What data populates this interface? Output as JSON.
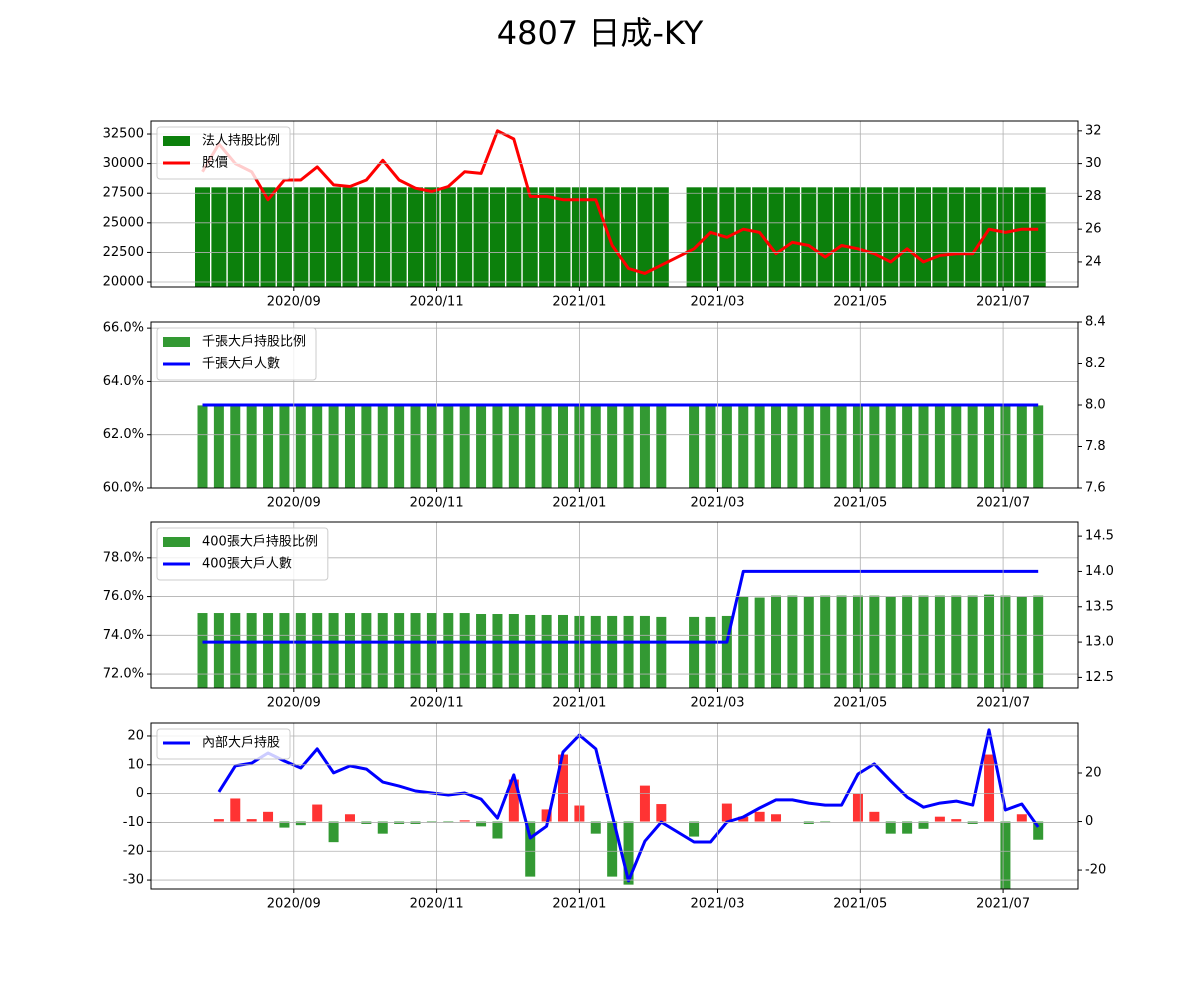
{
  "title": "4807 日成-KY",
  "chart_data": [
    {
      "type": "bar_line",
      "x": [
        "2020-07-24",
        "2020-07-31",
        "2020-08-07",
        "2020-08-14",
        "2020-08-21",
        "2020-08-28",
        "2020-09-04",
        "2020-09-11",
        "2020-09-18",
        "2020-09-25",
        "2020-10-02",
        "2020-10-09",
        "2020-10-16",
        "2020-10-23",
        "2020-10-30",
        "2020-11-06",
        "2020-11-13",
        "2020-11-20",
        "2020-11-27",
        "2020-12-04",
        "2020-12-11",
        "2020-12-18",
        "2020-12-25",
        "2021-01-01",
        "2021-01-08",
        "2021-01-15",
        "2021-01-22",
        "2021-01-29",
        "2021-02-05",
        "2021-02-19",
        "2021-02-26",
        "2021-03-05",
        "2021-03-12",
        "2021-03-19",
        "2021-03-26",
        "2021-04-02",
        "2021-04-09",
        "2021-04-16",
        "2021-04-23",
        "2021-04-30",
        "2021-05-07",
        "2021-05-14",
        "2021-05-21",
        "2021-05-28",
        "2021-06-04",
        "2021-06-11",
        "2021-06-18",
        "2021-06-25",
        "2021-07-02",
        "2021-07-09",
        "2021-07-16"
      ],
      "xlim": [
        "2020-07-02",
        "2021-08-02"
      ],
      "xticks": [
        {
          "value": "2020-09-01",
          "label": "2020/09"
        },
        {
          "value": "2020-11-01",
          "label": "2020/11"
        },
        {
          "value": "2021-01-01",
          "label": "2021/01"
        },
        {
          "value": "2021-03-01",
          "label": "2021/03"
        },
        {
          "value": "2021-05-01",
          "label": "2021/05"
        },
        {
          "value": "2021-07-01",
          "label": "2021/07"
        }
      ],
      "ylim": [
        19580,
        33600
      ],
      "yticks": [
        20000,
        22500,
        25000,
        27500,
        30000,
        32500
      ],
      "y2lim": [
        22.47,
        32.6
      ],
      "y2ticks": [
        24,
        26,
        28,
        30,
        32
      ],
      "grid": true,
      "legend": "upper left",
      "series": [
        {
          "name": "法人持股比例",
          "type": "bar",
          "color": "#0c800c",
          "values": [
            28000,
            28000,
            28000,
            28000,
            28000,
            28000,
            28000,
            28000,
            28000,
            28000,
            28000,
            28000,
            28000,
            28000,
            28000,
            28000,
            28000,
            28000,
            28000,
            28000,
            28000,
            28000,
            28000,
            28000,
            28000,
            28000,
            28000,
            28000,
            28000,
            28000,
            28000,
            28000,
            28000,
            28000,
            28000,
            28000,
            28000,
            28000,
            28000,
            28000,
            28000,
            28000,
            28000,
            28000,
            28000,
            28000,
            28000,
            28000,
            28000,
            28000,
            28000
          ]
        },
        {
          "name": "股價",
          "type": "line",
          "axis": "y2",
          "color": "#ff0000",
          "values": [
            29.5,
            31.2,
            30.0,
            29.5,
            27.8,
            29.0,
            29.0,
            29.8,
            28.7,
            28.6,
            29.0,
            30.2,
            29.0,
            28.5,
            28.3,
            28.6,
            29.5,
            29.4,
            32.0,
            31.5,
            28.0,
            28.0,
            27.8,
            27.8,
            27.8,
            25.0,
            23.6,
            23.3,
            23.8,
            24.8,
            25.8,
            25.5,
            26.0,
            25.8,
            24.5,
            25.2,
            25.0,
            24.3,
            25.0,
            24.8,
            24.5,
            24.0,
            24.8,
            24.0,
            24.4,
            24.5,
            24.5,
            26.0,
            25.8,
            26.0,
            26.0
          ]
        }
      ]
    },
    {
      "type": "bar_line",
      "x": [
        "2020-07-24",
        "2020-07-31",
        "2020-08-07",
        "2020-08-14",
        "2020-08-21",
        "2020-08-28",
        "2020-09-04",
        "2020-09-11",
        "2020-09-18",
        "2020-09-25",
        "2020-10-02",
        "2020-10-09",
        "2020-10-16",
        "2020-10-23",
        "2020-10-30",
        "2020-11-06",
        "2020-11-13",
        "2020-11-20",
        "2020-11-27",
        "2020-12-04",
        "2020-12-11",
        "2020-12-18",
        "2020-12-25",
        "2021-01-01",
        "2021-01-08",
        "2021-01-15",
        "2021-01-22",
        "2021-01-29",
        "2021-02-05",
        "2021-02-19",
        "2021-02-26",
        "2021-03-05",
        "2021-03-12",
        "2021-03-19",
        "2021-03-26",
        "2021-04-02",
        "2021-04-09",
        "2021-04-16",
        "2021-04-23",
        "2021-04-30",
        "2021-05-07",
        "2021-05-14",
        "2021-05-21",
        "2021-05-28",
        "2021-06-04",
        "2021-06-11",
        "2021-06-18",
        "2021-06-25",
        "2021-07-02",
        "2021-07-09",
        "2021-07-16"
      ],
      "xlim": [
        "2020-07-02",
        "2021-08-02"
      ],
      "xticks": [
        {
          "value": "2020-09-01",
          "label": "2020/09"
        },
        {
          "value": "2020-11-01",
          "label": "2020/11"
        },
        {
          "value": "2021-01-01",
          "label": "2021/01"
        },
        {
          "value": "2021-03-01",
          "label": "2021/03"
        },
        {
          "value": "2021-05-01",
          "label": "2021/05"
        },
        {
          "value": "2021-07-01",
          "label": "2021/07"
        }
      ],
      "ylim": [
        60,
        66.23
      ],
      "yticks": [
        {
          "value": 60,
          "label": "60.0%"
        },
        {
          "value": 62,
          "label": "62.0%"
        },
        {
          "value": 64,
          "label": "64.0%"
        },
        {
          "value": 66,
          "label": "66.0%"
        }
      ],
      "y2lim": [
        7.6,
        8.4
      ],
      "y2ticks": [
        7.6,
        7.8,
        {
          "value": 8,
          "label": "8.0"
        },
        8.2,
        8.4
      ],
      "grid": true,
      "legend": "upper left",
      "series": [
        {
          "name": "千張大戶持股比例",
          "type": "bar",
          "color": "#339933",
          "values": [
            63.1,
            63.1,
            63.1,
            63.1,
            63.1,
            63.1,
            63.1,
            63.1,
            63.1,
            63.1,
            63.1,
            63.1,
            63.1,
            63.1,
            63.1,
            63.1,
            63.1,
            63.1,
            63.1,
            63.1,
            63.1,
            63.1,
            63.1,
            63.1,
            63.1,
            63.1,
            63.1,
            63.1,
            63.1,
            63.1,
            63.1,
            63.1,
            63.1,
            63.1,
            63.1,
            63.1,
            63.1,
            63.1,
            63.1,
            63.1,
            63.1,
            63.1,
            63.1,
            63.1,
            63.1,
            63.1,
            63.1,
            63.1,
            63.1,
            63.1,
            63.1
          ]
        },
        {
          "name": "千張大戶人數",
          "type": "line",
          "axis": "y2",
          "color": "#0000ff",
          "values": [
            8,
            8,
            8,
            8,
            8,
            8,
            8,
            8,
            8,
            8,
            8,
            8,
            8,
            8,
            8,
            8,
            8,
            8,
            8,
            8,
            8,
            8,
            8,
            8,
            8,
            8,
            8,
            8,
            8,
            8,
            8,
            8,
            8,
            8,
            8,
            8,
            8,
            8,
            8,
            8,
            8,
            8,
            8,
            8,
            8,
            8,
            8,
            8,
            8,
            8,
            8
          ]
        }
      ]
    },
    {
      "type": "bar_line",
      "x": [
        "2020-07-24",
        "2020-07-31",
        "2020-08-07",
        "2020-08-14",
        "2020-08-21",
        "2020-08-28",
        "2020-09-04",
        "2020-09-11",
        "2020-09-18",
        "2020-09-25",
        "2020-10-02",
        "2020-10-09",
        "2020-10-16",
        "2020-10-23",
        "2020-10-30",
        "2020-11-06",
        "2020-11-13",
        "2020-11-20",
        "2020-11-27",
        "2020-12-04",
        "2020-12-11",
        "2020-12-18",
        "2020-12-25",
        "2021-01-01",
        "2021-01-08",
        "2021-01-15",
        "2021-01-22",
        "2021-01-29",
        "2021-02-05",
        "2021-02-19",
        "2021-02-26",
        "2021-03-05",
        "2021-03-12",
        "2021-03-19",
        "2021-03-26",
        "2021-04-02",
        "2021-04-09",
        "2021-04-16",
        "2021-04-23",
        "2021-04-30",
        "2021-05-07",
        "2021-05-14",
        "2021-05-21",
        "2021-05-28",
        "2021-06-04",
        "2021-06-11",
        "2021-06-18",
        "2021-06-25",
        "2021-07-02",
        "2021-07-09",
        "2021-07-16"
      ],
      "xlim": [
        "2020-07-02",
        "2021-08-02"
      ],
      "xticks": [
        {
          "value": "2020-09-01",
          "label": "2020/09"
        },
        {
          "value": "2020-11-01",
          "label": "2020/11"
        },
        {
          "value": "2021-01-01",
          "label": "2021/01"
        },
        {
          "value": "2021-03-01",
          "label": "2021/03"
        },
        {
          "value": "2021-05-01",
          "label": "2021/05"
        },
        {
          "value": "2021-07-01",
          "label": "2021/07"
        }
      ],
      "ylim": [
        71.28,
        79.85
      ],
      "yticks": [
        {
          "value": 72,
          "label": "72.0%"
        },
        {
          "value": 74,
          "label": "74.0%"
        },
        {
          "value": 76,
          "label": "76.0%"
        },
        {
          "value": 78,
          "label": "78.0%"
        }
      ],
      "y2lim": [
        12.35,
        14.7
      ],
      "y2ticks": [
        12.5,
        {
          "value": 13,
          "label": "13.0"
        },
        13.5,
        {
          "value": 14,
          "label": "14.0"
        },
        14.5
      ],
      "grid": true,
      "legend": "upper left",
      "series": [
        {
          "name": "400張大戶持股比例",
          "type": "bar",
          "color": "#339933",
          "values": [
            75.15,
            75.15,
            75.15,
            75.15,
            75.15,
            75.15,
            75.15,
            75.15,
            75.15,
            75.15,
            75.15,
            75.15,
            75.15,
            75.15,
            75.15,
            75.15,
            75.15,
            75.1,
            75.1,
            75.1,
            75.05,
            75.05,
            75.05,
            75.0,
            75.0,
            75.0,
            75.0,
            75.0,
            74.95,
            74.95,
            74.95,
            75.0,
            76.0,
            75.95,
            76.05,
            76.05,
            76.0,
            76.05,
            76.05,
            76.05,
            76.05,
            76.0,
            76.05,
            76.05,
            76.05,
            76.05,
            76.05,
            76.1,
            76.05,
            76.0,
            76.05
          ]
        },
        {
          "name": "400張大戶人數",
          "type": "line",
          "axis": "y2",
          "color": "#0000ff",
          "values": [
            13,
            13,
            13,
            13,
            13,
            13,
            13,
            13,
            13,
            13,
            13,
            13,
            13,
            13,
            13,
            13,
            13,
            13,
            13,
            13,
            13,
            13,
            13,
            13,
            13,
            13,
            13,
            13,
            13,
            13,
            13,
            13,
            14,
            14,
            14,
            14,
            14,
            14,
            14,
            14,
            14,
            14,
            14,
            14,
            14,
            14,
            14,
            14,
            14,
            14,
            14
          ]
        }
      ]
    },
    {
      "type": "bar_line",
      "x": [
        "2020-07-31",
        "2020-08-07",
        "2020-08-14",
        "2020-08-21",
        "2020-08-28",
        "2020-09-04",
        "2020-09-11",
        "2020-09-18",
        "2020-09-25",
        "2020-10-02",
        "2020-10-09",
        "2020-10-16",
        "2020-10-23",
        "2020-10-30",
        "2020-11-06",
        "2020-11-13",
        "2020-11-20",
        "2020-11-27",
        "2020-12-04",
        "2020-12-11",
        "2020-12-18",
        "2020-12-25",
        "2021-01-01",
        "2021-01-08",
        "2021-01-15",
        "2021-01-22",
        "2021-01-29",
        "2021-02-05",
        "2021-02-19",
        "2021-02-26",
        "2021-03-05",
        "2021-03-12",
        "2021-03-19",
        "2021-03-26",
        "2021-04-02",
        "2021-04-09",
        "2021-04-16",
        "2021-04-23",
        "2021-04-30",
        "2021-05-07",
        "2021-05-14",
        "2021-05-21",
        "2021-05-28",
        "2021-06-04",
        "2021-06-11",
        "2021-06-18",
        "2021-06-25",
        "2021-07-02",
        "2021-07-09",
        "2021-07-16"
      ],
      "xlim": [
        "2020-07-02",
        "2021-08-02"
      ],
      "xticks": [
        {
          "value": "2020-09-01",
          "label": "2020/09"
        },
        {
          "value": "2020-11-01",
          "label": "2020/11"
        },
        {
          "value": "2021-01-01",
          "label": "2021/01"
        },
        {
          "value": "2021-03-01",
          "label": "2021/03"
        },
        {
          "value": "2021-05-01",
          "label": "2021/05"
        },
        {
          "value": "2021-07-01",
          "label": "2021/07"
        }
      ],
      "ylim": [
        -33.1,
        24.5
      ],
      "yticks": [
        -30,
        -20,
        -10,
        0,
        10,
        20
      ],
      "y2lim": [
        -27.8,
        40.6
      ],
      "y2ticks": [
        -20,
        0,
        20
      ],
      "grid": true,
      "legend": "upper left",
      "series": [
        {
          "type": "bar",
          "axis": "y2",
          "positive_color": "#ff3333",
          "negative_color": "#339933",
          "values": [
            1,
            9.5,
            1,
            4,
            -2.5,
            -1.5,
            7,
            -8.5,
            3,
            -1,
            -5,
            -1,
            -1,
            -0.5,
            -0.5,
            0.5,
            -2,
            -7,
            17.3,
            -22.7,
            5,
            27.6,
            6.6,
            -5,
            -22.7,
            -26,
            14.8,
            7.2,
            -6.2,
            0,
            7.4,
            2,
            4,
            3,
            0,
            -1,
            -0.5,
            0,
            11.5,
            4,
            -5,
            -5,
            -3,
            2,
            1,
            -1,
            27.6,
            -30,
            3,
            -7.5
          ]
        },
        {
          "name": "內部大戶持股",
          "type": "line",
          "color": "#0000ff",
          "values": [
            0.6,
            9.6,
            10.6,
            14.1,
            11.3,
            8.9,
            15.5,
            7.2,
            9.6,
            8.5,
            4.0,
            2.6,
            0.9,
            0.2,
            -0.5,
            0.2,
            -1.9,
            -8.5,
            6.5,
            -15.4,
            -11.3,
            14.4,
            20.3,
            15.5,
            -7.4,
            -30.3,
            -16.5,
            -9.9,
            -16.8,
            -16.8,
            -9.9,
            -8.1,
            -5.0,
            -2.2,
            -2.2,
            -3.3,
            -4.0,
            -4.0,
            6.8,
            10.3,
            4.4,
            -1.2,
            -4.7,
            -3.3,
            -2.6,
            -4.0,
            22.1,
            -5.7,
            -3.6,
            -11.6
          ]
        }
      ]
    }
  ]
}
